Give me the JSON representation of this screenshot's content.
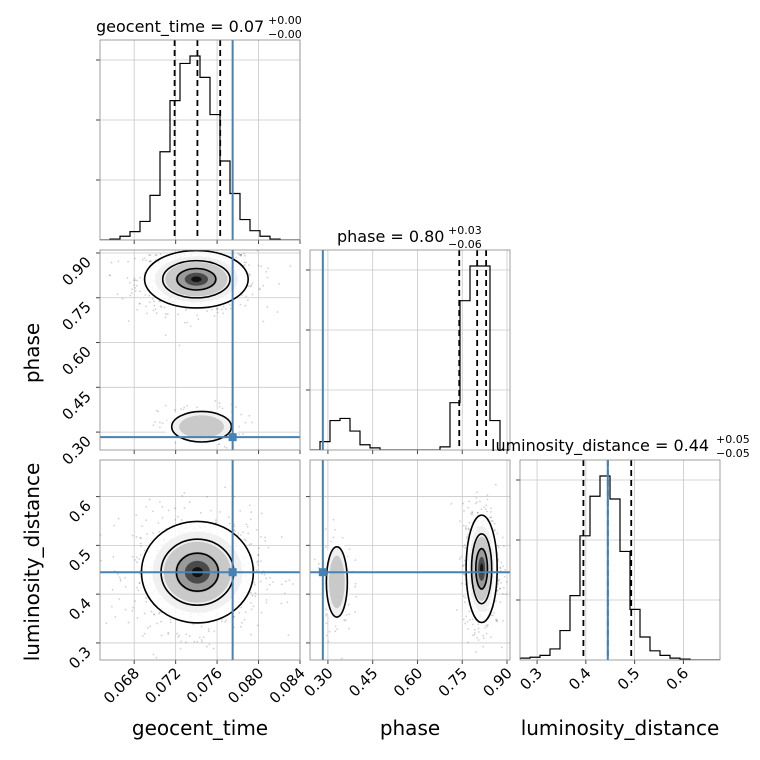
{
  "chart_data": {
    "type": "corner",
    "parameters": [
      "geocent_time",
      "phase",
      "luminosity_distance"
    ],
    "truths": {
      "geocent_time": 0.0775,
      "phase": 0.283,
      "luminosity_distance": 0.445
    },
    "truth_color": "#4682b4",
    "axes": {
      "geocent_time": {
        "label": "geocent_time",
        "range": [
          0.0647,
          0.084
        ],
        "ticks": [
          0.068,
          0.072,
          0.076,
          0.08,
          0.084
        ],
        "tick_labels": [
          "0.068",
          "0.072",
          "0.076",
          "0.080",
          "0.084"
        ]
      },
      "phase": {
        "label": "phase",
        "range": [
          0.24,
          0.91
        ],
        "ticks": [
          0.3,
          0.45,
          0.6,
          0.75,
          0.9
        ],
        "tick_labels": [
          "0.30",
          "0.45",
          "0.60",
          "0.75",
          "0.90"
        ]
      },
      "luminosity_distance": {
        "label": "luminosity_distance",
        "range": [
          0.265,
          0.675
        ],
        "ticks": [
          0.3,
          0.4,
          0.5,
          0.6
        ],
        "tick_labels": [
          "0.3",
          "0.4",
          "0.5",
          "0.6"
        ]
      }
    },
    "titles": {
      "geocent_time": {
        "text": "geocent_time = 0.07",
        "sup": "+0.00",
        "sub": "−0.00"
      },
      "phase": {
        "text": "phase = 0.80",
        "sup": "+0.03",
        "sub": "−0.06"
      },
      "luminosity_distance": {
        "text": "luminosity_distance = 0.44",
        "sup": "+0.05",
        "sub": "−0.05"
      }
    },
    "histograms": {
      "geocent_time": {
        "bin_edges_start": 0.0647,
        "bin_width": 0.000965,
        "counts": [
          0,
          1,
          4,
          9,
          20,
          48,
          95,
          150,
          190,
          198,
          175,
          135,
          85,
          50,
          22,
          10,
          4,
          1,
          0,
          0
        ],
        "quantiles": [
          0.0719,
          0.0741,
          0.0763
        ]
      },
      "phase": {
        "bin_edges_start": 0.24,
        "bin_width": 0.0335,
        "counts": [
          0,
          8,
          28,
          30,
          18,
          5,
          2,
          0,
          0,
          0,
          0,
          0,
          0,
          3,
          45,
          142,
          175,
          175,
          28,
          0
        ],
        "quantiles": [
          0.74,
          0.8,
          0.83
        ]
      },
      "luminosity_distance": {
        "bin_edges_start": 0.265,
        "bin_width": 0.0205,
        "counts": [
          2,
          3,
          5,
          12,
          32,
          70,
          135,
          178,
          200,
          175,
          118,
          55,
          25,
          10,
          5,
          2,
          1,
          0,
          0,
          0
        ],
        "quantiles": [
          0.395,
          0.445,
          0.493
        ]
      }
    },
    "clusters": {
      "geocent_time|phase": [
        {
          "cx": 0.074,
          "cy": 0.812,
          "rx": 0.0025,
          "ry": 0.048,
          "weight": 0.82
        },
        {
          "cx": 0.0745,
          "cy": 0.318,
          "rx": 0.0018,
          "ry": 0.032,
          "weight": 0.18
        }
      ],
      "geocent_time|luminosity_distance": [
        {
          "cx": 0.0741,
          "cy": 0.445,
          "rx": 0.0027,
          "ry": 0.052,
          "weight": 1.0
        }
      ],
      "phase|luminosity_distance": [
        {
          "cx": 0.815,
          "cy": 0.452,
          "rx": 0.026,
          "ry": 0.055,
          "weight": 0.82
        },
        {
          "cx": 0.33,
          "cy": 0.425,
          "rx": 0.022,
          "ry": 0.045,
          "weight": 0.18
        }
      ]
    }
  }
}
